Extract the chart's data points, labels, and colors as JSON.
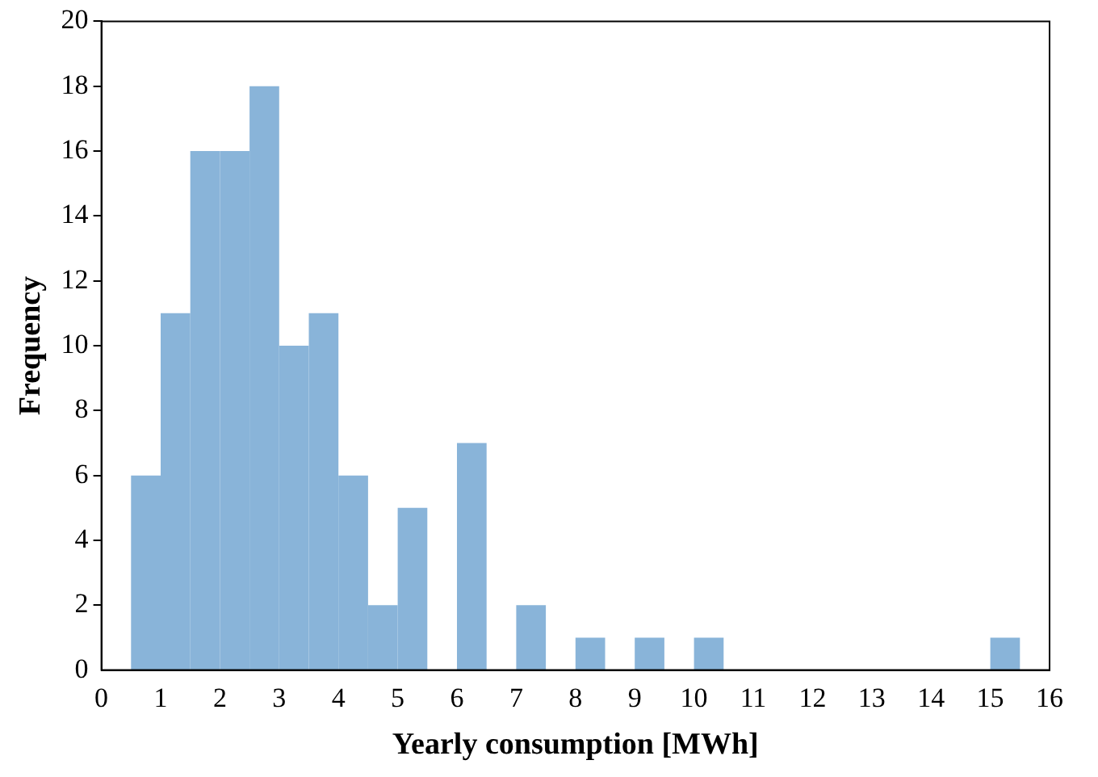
{
  "chart_data": {
    "type": "histogram",
    "xlabel": "Yearly consumption [MWh]",
    "ylabel": "Frequency",
    "bins": [
      0.5,
      1,
      1.5,
      2,
      2.5,
      3,
      3.5,
      4,
      4.5,
      5,
      5.5,
      6,
      6.5,
      7,
      7.5,
      8,
      8.5,
      9,
      9.5,
      10,
      10.5,
      11,
      11.5,
      12,
      12.5,
      13,
      13.5,
      14,
      14.5,
      15,
      15.5
    ],
    "values": [
      6,
      11,
      16,
      16,
      18,
      10,
      11,
      6,
      2,
      5,
      0,
      7,
      0,
      2,
      0,
      1,
      0,
      1,
      0,
      1,
      0,
      0,
      0,
      0,
      0,
      0,
      0,
      0,
      0,
      1
    ],
    "color": "#89b4d9",
    "xlim": [
      0,
      16
    ],
    "xticks": [
      0,
      1,
      2,
      3,
      4,
      5,
      6,
      7,
      8,
      9,
      10,
      11,
      12,
      13,
      14,
      15,
      16
    ],
    "ylim": [
      0,
      20
    ],
    "yticks": [
      0,
      2,
      4,
      6,
      8,
      10,
      12,
      14,
      16,
      18,
      20
    ],
    "grid": false,
    "legend": false
  }
}
